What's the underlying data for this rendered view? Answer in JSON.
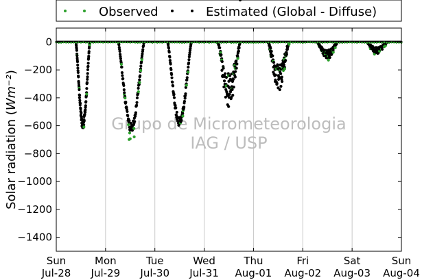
{
  "chart_data": {
    "type": "scatter",
    "title": "",
    "ylabel": "Solar radiation",
    "ylabel_unit": "Wm⁻²",
    "xlabel": "",
    "x_range": [
      0,
      7
    ],
    "ylim": [
      -1500,
      100
    ],
    "y_ticks": [
      0,
      -200,
      -400,
      -600,
      -800,
      -1000,
      -1200,
      -1400
    ],
    "x_ticks": [
      {
        "x": 0,
        "day": "Sun",
        "date": "Jul-28"
      },
      {
        "x": 1,
        "day": "Mon",
        "date": "Jul-29"
      },
      {
        "x": 2,
        "day": "Tue",
        "date": "Jul-30"
      },
      {
        "x": 3,
        "day": "Wed",
        "date": "Jul-31"
      },
      {
        "x": 4,
        "day": "Thu",
        "date": "Aug-01"
      },
      {
        "x": 5,
        "day": "Fri",
        "date": "Aug-02"
      },
      {
        "x": 6,
        "day": "Sat",
        "date": "Aug-03"
      },
      {
        "x": 7,
        "day": "Sun",
        "date": "Aug-04"
      }
    ],
    "grid": "vertical lines at day boundaries",
    "legend": {
      "placement": "top, above plot",
      "entries": [
        {
          "label": "Observed",
          "color": "#2ca02c"
        },
        {
          "label": "Estimated (Global - Diffuse)",
          "color": "#000000"
        }
      ]
    },
    "watermark": [
      "Grupo de Micrometeorologia",
      "IAG / USP"
    ],
    "days": [
      {
        "day_start": 0,
        "sunrise": 0.4,
        "sunset": 0.68,
        "peak_time": 0.55,
        "peak": -615,
        "obs_extra": -10
      },
      {
        "day_start": 1,
        "sunrise": 1.26,
        "sunset": 1.78,
        "peak_time": 1.5,
        "peak": -640,
        "obs_extra": -150
      },
      {
        "day_start": 2,
        "sunrise": 2.26,
        "sunset": 2.74,
        "peak_time": 2.5,
        "peak": -600,
        "obs_extra": -20
      },
      {
        "day_start": 3,
        "sunrise": 3.28,
        "sunset": 3.73,
        "peak_time": 3.5,
        "peak": -480,
        "obs_extra": -10
      },
      {
        "day_start": 4,
        "sunrise": 4.3,
        "sunset": 4.72,
        "peak_time": 4.5,
        "peak": -350,
        "obs_extra": -10
      },
      {
        "day_start": 5,
        "sunrise": 5.3,
        "sunset": 5.7,
        "peak_time": 5.5,
        "peak": -120,
        "obs_extra": -10
      },
      {
        "day_start": 6,
        "sunrise": 6.3,
        "sunset": 6.7,
        "peak_time": 6.5,
        "peak": -80,
        "obs_extra": -5
      }
    ],
    "colors": {
      "observed": "#2ca02c",
      "estimated": "#000000",
      "grid": "#c8c8c8",
      "watermark": "#bdbdbd"
    }
  }
}
